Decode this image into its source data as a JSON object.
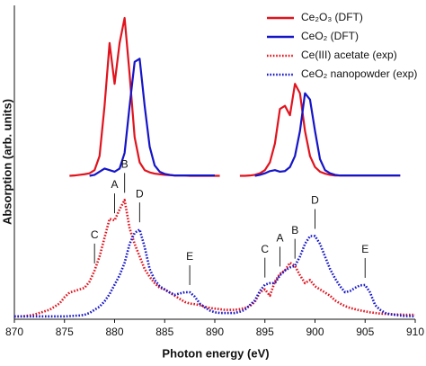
{
  "chart_data": {
    "type": "line",
    "xlabel": "Photon energy (eV)",
    "ylabel": "Absorption (arb. units)",
    "xlim": [
      870,
      910
    ],
    "xticks": [
      870,
      875,
      880,
      885,
      890,
      895,
      900,
      905,
      910
    ],
    "ylim": [
      0,
      10
    ],
    "yticks": [],
    "grid": false,
    "legend": "upper right",
    "x": [
      870,
      870.5,
      871,
      871.5,
      872,
      872.5,
      873,
      873.5,
      874,
      874.5,
      875,
      875.5,
      876,
      876.5,
      877,
      877.5,
      878,
      878.5,
      879,
      879.5,
      880,
      880.5,
      881,
      881.5,
      882,
      882.5,
      883,
      883.5,
      884,
      884.5,
      885,
      885.5,
      886,
      886.5,
      887,
      887.5,
      888,
      888.5,
      889,
      889.5,
      890,
      890.5,
      891,
      891.5,
      892,
      892.5,
      893,
      893.5,
      894,
      894.5,
      895,
      895.5,
      896,
      896.5,
      897,
      897.5,
      898,
      898.5,
      899,
      899.5,
      900,
      900.5,
      901,
      901.5,
      902,
      902.5,
      903,
      903.5,
      904,
      904.5,
      905,
      905.5,
      906,
      906.5,
      907,
      907.5,
      908,
      908.5,
      909,
      909.5,
      910
    ],
    "series": [
      {
        "name": "Ce₂O₃ (DFT)",
        "color": "#e0141e",
        "style": "solid",
        "values": [
          null,
          null,
          null,
          null,
          null,
          null,
          null,
          null,
          null,
          null,
          null,
          4.57,
          4.58,
          4.6,
          4.62,
          4.65,
          4.75,
          5.2,
          6.8,
          8.8,
          7.5,
          8.8,
          9.6,
          7.8,
          5.8,
          5.0,
          4.75,
          4.68,
          4.64,
          4.62,
          4.6,
          4.59,
          4.58,
          4.58,
          4.58,
          4.57,
          4.57,
          4.57,
          4.57,
          4.57,
          4.57,
          4.57,
          null,
          null,
          null,
          4.57,
          4.57,
          4.58,
          4.6,
          4.65,
          4.75,
          5.0,
          5.6,
          6.7,
          6.8,
          6.5,
          7.5,
          7.2,
          6.0,
          5.2,
          4.85,
          4.7,
          4.64,
          4.6,
          4.58,
          4.58,
          4.58,
          4.58,
          4.58,
          4.58,
          4.58,
          4.58,
          4.58,
          4.58,
          4.58,
          4.58,
          4.58,
          4.58,
          null,
          null,
          null
        ]
      },
      {
        "name": "CeO₂ (DFT)",
        "color": "#1515c8",
        "style": "solid",
        "values": [
          null,
          null,
          null,
          null,
          null,
          null,
          null,
          null,
          null,
          null,
          null,
          null,
          null,
          null,
          null,
          4.57,
          4.6,
          4.7,
          4.8,
          4.75,
          4.7,
          4.8,
          5.3,
          6.8,
          8.2,
          8.3,
          6.8,
          5.5,
          4.9,
          4.7,
          4.63,
          4.6,
          4.58,
          4.58,
          4.58,
          4.58,
          4.58,
          4.58,
          4.58,
          4.58,
          4.58,
          null,
          null,
          null,
          null,
          null,
          null,
          null,
          4.57,
          4.6,
          4.65,
          4.72,
          4.75,
          4.7,
          4.72,
          4.85,
          5.2,
          6.0,
          7.2,
          7.0,
          6.0,
          5.1,
          4.75,
          4.65,
          4.6,
          4.58,
          4.58,
          4.58,
          4.58,
          4.58,
          4.58,
          4.58,
          4.58,
          4.58,
          4.58,
          4.58,
          4.58,
          4.58,
          null,
          null,
          null
        ]
      },
      {
        "name": "Ce(III) acetate (exp)",
        "color": "#e0141e",
        "style": "dotted",
        "values": [
          0.09,
          0.09,
          0.1,
          0.12,
          0.15,
          0.2,
          0.25,
          0.3,
          0.4,
          0.5,
          0.7,
          0.85,
          0.9,
          0.95,
          1.0,
          1.2,
          1.55,
          2.0,
          2.6,
          3.2,
          3.15,
          3.5,
          3.8,
          2.9,
          2.4,
          2.0,
          1.6,
          1.35,
          1.15,
          1.0,
          0.95,
          0.85,
          0.75,
          0.65,
          0.55,
          0.5,
          0.48,
          0.45,
          0.4,
          0.36,
          0.34,
          0.32,
          0.3,
          0.3,
          0.3,
          0.32,
          0.36,
          0.42,
          0.55,
          0.86,
          0.95,
          0.75,
          1.2,
          1.45,
          1.55,
          1.8,
          1.7,
          1.4,
          1.15,
          1.25,
          1.05,
          0.95,
          0.85,
          0.75,
          0.6,
          0.5,
          0.42,
          0.36,
          0.32,
          0.28,
          0.25,
          0.22,
          0.2,
          0.18,
          0.17,
          0.16,
          0.15,
          0.15,
          0.14,
          0.14,
          0.14
        ]
      },
      {
        "name": "CeO₂ nanopowder (exp)",
        "color": "#1515c8",
        "style": "dotted",
        "values": [
          0.09,
          0.09,
          0.09,
          0.09,
          0.09,
          0.09,
          0.09,
          0.09,
          0.09,
          0.09,
          0.09,
          0.1,
          0.11,
          0.12,
          0.14,
          0.2,
          0.3,
          0.4,
          0.57,
          0.8,
          1.1,
          1.4,
          1.8,
          2.4,
          2.75,
          2.86,
          2.3,
          1.6,
          1.25,
          1.05,
          0.95,
          0.85,
          0.78,
          0.82,
          0.86,
          0.86,
          0.72,
          0.5,
          0.38,
          0.28,
          0.22,
          0.2,
          0.2,
          0.2,
          0.2,
          0.24,
          0.3,
          0.45,
          0.6,
          0.9,
          1.1,
          1.15,
          1.15,
          1.4,
          1.55,
          1.65,
          1.7,
          2.0,
          2.4,
          2.65,
          2.65,
          2.4,
          2.0,
          1.6,
          1.3,
          1.05,
          0.86,
          0.9,
          1.0,
          1.08,
          1.09,
          0.85,
          0.45,
          0.3,
          0.2,
          0.16,
          0.14,
          0.12,
          0.1,
          0.1,
          0.09
        ]
      }
    ],
    "annotations": [
      {
        "text": "C",
        "x": 878
      },
      {
        "text": "A",
        "x": 880
      },
      {
        "text": "B",
        "x": 881
      },
      {
        "text": "D",
        "x": 882.5
      },
      {
        "text": "E",
        "x": 887.5
      },
      {
        "text": "C",
        "x": 895
      },
      {
        "text": "A",
        "x": 896.5
      },
      {
        "text": "B",
        "x": 898
      },
      {
        "text": "D",
        "x": 900
      },
      {
        "text": "E",
        "x": 905
      }
    ]
  }
}
